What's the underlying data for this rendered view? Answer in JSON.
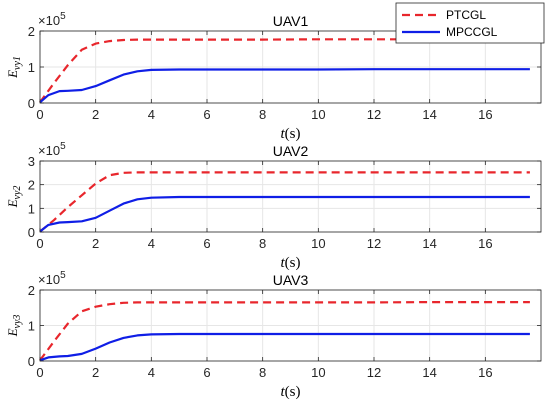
{
  "chart_data": [
    {
      "type": "line",
      "title": "UAV1",
      "ylabel_base": "E",
      "ylabel_sub": "vy1",
      "xlabel_var": "t",
      "xlabel_unit": "(s)",
      "exponent_base": "×10",
      "exponent_power": "5",
      "xlim": [
        0,
        18
      ],
      "ylim": [
        0,
        2
      ],
      "xticks": [
        "0",
        "2",
        "4",
        "6",
        "8",
        "10",
        "12",
        "14",
        "16"
      ],
      "yticks": [
        "0",
        "1",
        "2"
      ],
      "grid": true,
      "series": [
        {
          "name": "PTCGL",
          "color": "#e8262c",
          "style": "dashed",
          "x": [
            0,
            0.5,
            1.0,
            1.5,
            2.0,
            2.5,
            3.0,
            3.5,
            4.0,
            6,
            8,
            10,
            12,
            14,
            16,
            17.6
          ],
          "y": [
            0.02,
            0.55,
            1.05,
            1.48,
            1.65,
            1.72,
            1.75,
            1.76,
            1.76,
            1.76,
            1.76,
            1.77,
            1.77,
            1.77,
            1.77,
            1.78
          ]
        },
        {
          "name": "MPCCGL",
          "color": "#0f1ee6",
          "style": "solid",
          "x": [
            0,
            0.3,
            0.7,
            1.0,
            1.5,
            2.0,
            2.5,
            3.0,
            3.5,
            4.0,
            5,
            6,
            8,
            10,
            12,
            14,
            16,
            17.6
          ],
          "y": [
            0.02,
            0.22,
            0.33,
            0.34,
            0.36,
            0.47,
            0.63,
            0.79,
            0.88,
            0.92,
            0.93,
            0.93,
            0.93,
            0.93,
            0.94,
            0.94,
            0.94,
            0.94
          ]
        }
      ]
    },
    {
      "type": "line",
      "title": "UAV2",
      "ylabel_base": "E",
      "ylabel_sub": "vy2",
      "xlabel_var": "t",
      "xlabel_unit": "(s)",
      "exponent_base": "×10",
      "exponent_power": "5",
      "xlim": [
        0,
        18
      ],
      "ylim": [
        0,
        3
      ],
      "xticks": [
        "0",
        "2",
        "4",
        "6",
        "8",
        "10",
        "12",
        "14",
        "16"
      ],
      "yticks": [
        "0",
        "1",
        "2",
        "3"
      ],
      "grid": true,
      "series": [
        {
          "name": "PTCGL",
          "color": "#e8262c",
          "style": "dashed",
          "x": [
            0,
            0.5,
            1.0,
            1.5,
            2.0,
            2.5,
            3.0,
            3.5,
            4.0,
            6,
            8,
            10,
            12,
            14,
            16,
            17.6
          ],
          "y": [
            0.02,
            0.5,
            1.05,
            1.55,
            2.05,
            2.4,
            2.5,
            2.52,
            2.52,
            2.52,
            2.52,
            2.52,
            2.52,
            2.52,
            2.52,
            2.52
          ]
        },
        {
          "name": "MPCCGL",
          "color": "#0f1ee6",
          "style": "solid",
          "x": [
            0,
            0.3,
            0.7,
            1.0,
            1.5,
            2.0,
            2.5,
            3.0,
            3.5,
            4.0,
            5,
            6,
            8,
            10,
            12,
            14,
            16,
            17.6
          ],
          "y": [
            0.02,
            0.3,
            0.4,
            0.42,
            0.45,
            0.6,
            0.9,
            1.2,
            1.38,
            1.45,
            1.48,
            1.48,
            1.48,
            1.48,
            1.48,
            1.48,
            1.48,
            1.48
          ]
        }
      ]
    },
    {
      "type": "line",
      "title": "UAV3",
      "ylabel_base": "E",
      "ylabel_sub": "vy3",
      "xlabel_var": "t",
      "xlabel_unit": "(s)",
      "exponent_base": "×10",
      "exponent_power": "5",
      "xlim": [
        0,
        18
      ],
      "ylim": [
        0,
        2
      ],
      "xticks": [
        "0",
        "2",
        "4",
        "6",
        "8",
        "10",
        "12",
        "14",
        "16"
      ],
      "yticks": [
        "0",
        "1",
        "2"
      ],
      "grid": true,
      "series": [
        {
          "name": "PTCGL",
          "color": "#e8262c",
          "style": "dashed",
          "x": [
            0,
            0.5,
            1.0,
            1.5,
            2.0,
            2.5,
            3.0,
            3.5,
            4.0,
            6,
            8,
            10,
            12,
            14,
            16,
            17.6
          ],
          "y": [
            0.02,
            0.55,
            1.05,
            1.4,
            1.53,
            1.6,
            1.64,
            1.65,
            1.65,
            1.65,
            1.65,
            1.65,
            1.65,
            1.66,
            1.66,
            1.66
          ]
        },
        {
          "name": "MPCCGL",
          "color": "#0f1ee6",
          "style": "solid",
          "x": [
            0,
            0.3,
            0.7,
            1.0,
            1.5,
            2.0,
            2.5,
            3.0,
            3.5,
            4.0,
            5,
            6,
            8,
            10,
            12,
            14,
            16,
            17.6
          ],
          "y": [
            0.02,
            0.1,
            0.13,
            0.14,
            0.2,
            0.35,
            0.52,
            0.65,
            0.72,
            0.75,
            0.76,
            0.76,
            0.76,
            0.76,
            0.76,
            0.76,
            0.76,
            0.76
          ]
        }
      ]
    }
  ],
  "legend": {
    "placement": "top-right",
    "entries": [
      {
        "label": "PTCGL",
        "color": "#e8262c",
        "style": "dashed"
      },
      {
        "label": "MPCCGL",
        "color": "#0f1ee6",
        "style": "solid"
      }
    ]
  }
}
